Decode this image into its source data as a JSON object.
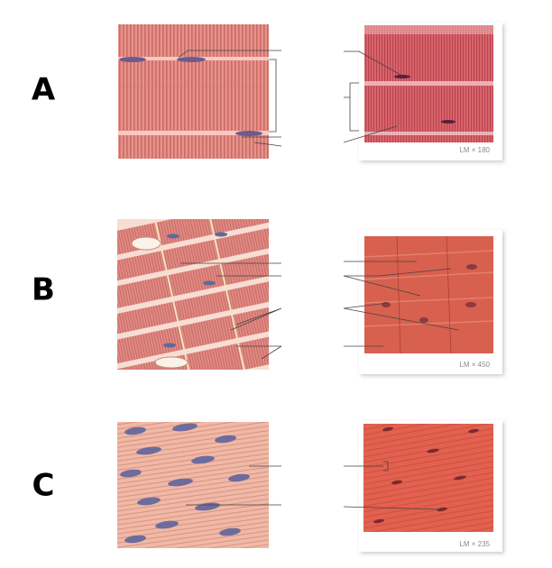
{
  "rows": [
    {
      "label": "A",
      "magnification": "LM × 180"
    },
    {
      "label": "B",
      "magnification": "LM × 450"
    },
    {
      "label": "C",
      "magnification": "LM × 235"
    }
  ]
}
